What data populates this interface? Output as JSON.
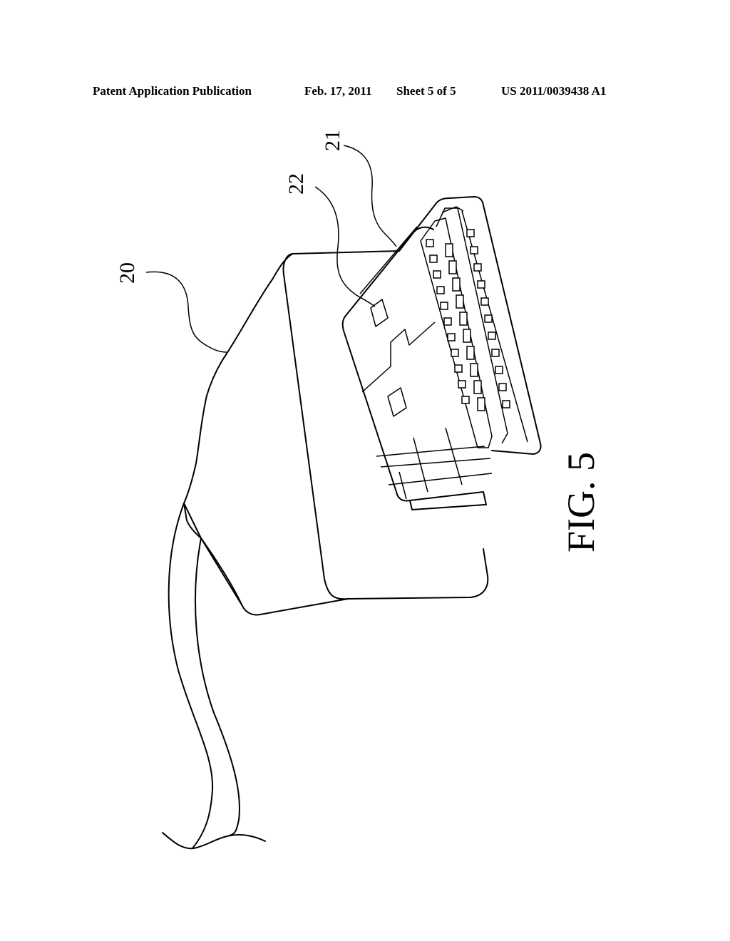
{
  "header": {
    "publication": "Patent Application Publication",
    "date": "Feb. 17, 2011",
    "sheet": "Sheet 5 of 5",
    "number": "US 2011/0039438 A1"
  },
  "figure": {
    "label": "FIG. 5",
    "ref_cable_connector": "20",
    "ref_plug": "21",
    "ref_hole": "22"
  }
}
